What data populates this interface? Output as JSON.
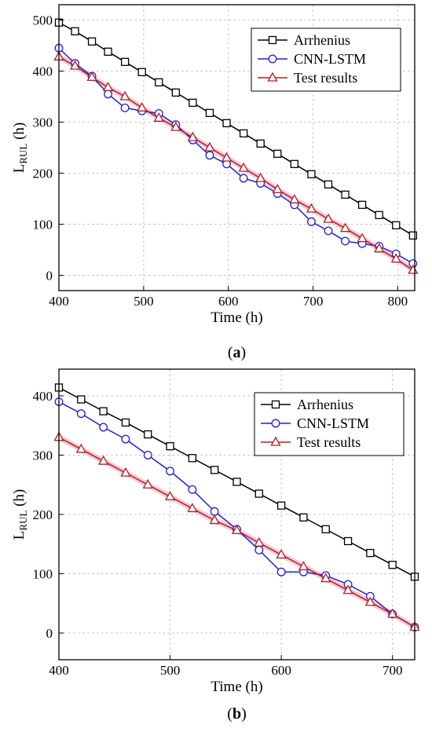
{
  "colors": {
    "arrhenius": "#000000",
    "cnn_lstm": "#1f1fe0",
    "test": "#b02020",
    "test_band": "#f7b8c8",
    "grid": "#c8c8c8"
  },
  "chart_data": [
    {
      "type": "line",
      "caption_letter": "a",
      "xlabel": "Time (h)",
      "ylabel": "L",
      "ylabel_sub": "RUL",
      "ylabel_suffix": " (h)",
      "xlim": [
        400,
        820
      ],
      "ylim": [
        -30,
        530
      ],
      "xticks": [
        400,
        500,
        600,
        700,
        800
      ],
      "yticks": [
        0,
        100,
        200,
        300,
        400,
        500
      ],
      "legend_position": "top-right",
      "grid": true,
      "series": [
        {
          "name": "Arrhenius",
          "marker": "square",
          "x": [
            400,
            419,
            439,
            458,
            478,
            498,
            518,
            538,
            558,
            578,
            598,
            618,
            638,
            658,
            678,
            698,
            718,
            738,
            758,
            778,
            798,
            818
          ],
          "y": [
            495,
            478,
            458,
            438,
            418,
            398,
            378,
            358,
            338,
            318,
            298,
            278,
            258,
            238,
            218,
            198,
            178,
            158,
            138,
            118,
            98,
            78
          ]
        },
        {
          "name": "CNN-LSTM",
          "marker": "circle",
          "x": [
            400,
            419,
            439,
            458,
            478,
            498,
            518,
            538,
            558,
            578,
            598,
            618,
            638,
            658,
            678,
            698,
            718,
            738,
            758,
            778,
            798,
            818
          ],
          "y": [
            445,
            415,
            390,
            355,
            328,
            322,
            317,
            295,
            265,
            235,
            218,
            190,
            180,
            160,
            138,
            105,
            87,
            67,
            62,
            57,
            42,
            23
          ]
        },
        {
          "name": "Test results",
          "marker": "triangle",
          "x": [
            400,
            419,
            439,
            458,
            478,
            498,
            518,
            538,
            558,
            578,
            598,
            618,
            638,
            658,
            678,
            698,
            718,
            738,
            758,
            778,
            798,
            818
          ],
          "y": [
            428,
            410,
            388,
            368,
            350,
            328,
            308,
            290,
            270,
            250,
            230,
            210,
            190,
            168,
            148,
            130,
            110,
            92,
            72,
            52,
            32,
            10
          ]
        }
      ]
    },
    {
      "type": "line",
      "caption_letter": "b",
      "xlabel": "Time (h)",
      "ylabel": "L",
      "ylabel_sub": "RUL",
      "ylabel_suffix": " (h)",
      "xlim": [
        400,
        720
      ],
      "ylim": [
        -45,
        445
      ],
      "xticks": [
        400,
        500,
        600,
        700
      ],
      "yticks": [
        0,
        100,
        200,
        300,
        400
      ],
      "legend_position": "top-right",
      "grid": true,
      "series": [
        {
          "name": "Arrhenius",
          "marker": "square",
          "x": [
            400,
            420,
            440,
            460,
            480,
            500,
            520,
            540,
            560,
            580,
            600,
            620,
            640,
            660,
            680,
            700,
            720
          ],
          "y": [
            414,
            394,
            374,
            355,
            335,
            315,
            295,
            275,
            255,
            235,
            215,
            195,
            175,
            155,
            135,
            115,
            95
          ]
        },
        {
          "name": "CNN-LSTM",
          "marker": "circle",
          "x": [
            400,
            420,
            440,
            460,
            480,
            500,
            520,
            540,
            560,
            580,
            600,
            620,
            640,
            660,
            680,
            700,
            720
          ],
          "y": [
            390,
            370,
            347,
            327,
            300,
            273,
            242,
            205,
            175,
            140,
            103,
            103,
            97,
            82,
            62,
            32,
            10
          ]
        },
        {
          "name": "Test results",
          "marker": "triangle",
          "x": [
            400,
            420,
            440,
            460,
            480,
            500,
            520,
            540,
            560,
            580,
            600,
            620,
            640,
            660,
            680,
            700,
            720
          ],
          "y": [
            330,
            310,
            290,
            270,
            250,
            230,
            210,
            190,
            173,
            152,
            132,
            112,
            92,
            72,
            52,
            32,
            10
          ]
        }
      ]
    }
  ]
}
